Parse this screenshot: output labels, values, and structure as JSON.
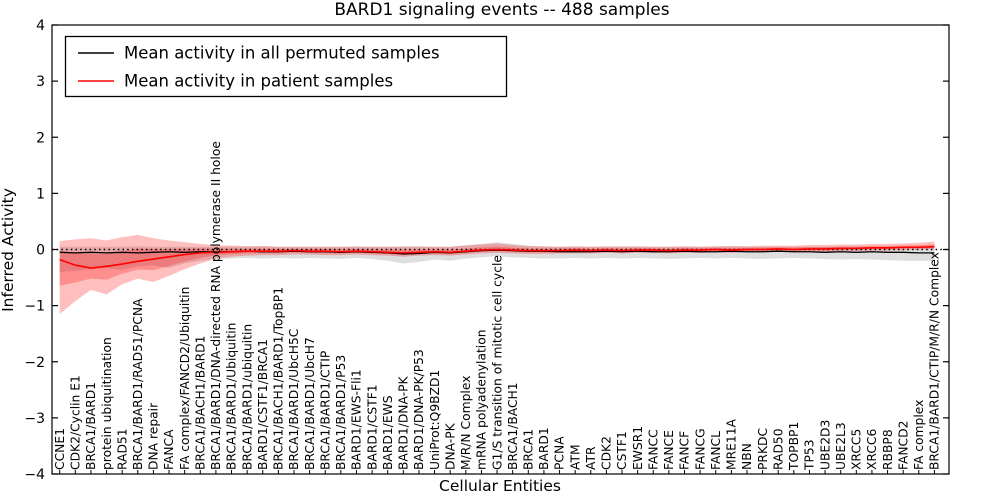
{
  "figure": {
    "title": "BARD1 signaling events -- 488 samples",
    "xlabel": "Cellular Entities",
    "ylabel": "Inferred Activity"
  },
  "legend": {
    "items": [
      {
        "label": "Mean activity in all permuted samples",
        "color": "#000000"
      },
      {
        "label": "Mean activity in patient samples",
        "color": "#ff0000"
      }
    ],
    "position": "upper left"
  },
  "chart_data": {
    "type": "line",
    "title": "BARD1 signaling events -- 488 samples",
    "xlabel": "Cellular Entities",
    "ylabel": "Inferred Activity",
    "ylim": [
      -4,
      4
    ],
    "yticks": [
      4,
      3,
      2,
      1,
      0,
      -1,
      -2,
      -3,
      -4
    ],
    "ytick_labels": [
      "4",
      "3",
      "2",
      "1",
      "0",
      "−1",
      "−2",
      "−3",
      "−4"
    ],
    "grid": false,
    "zero_line_style": "dotted",
    "legend_position": "upper left",
    "categories": [
      "CCNE1",
      "CDK2/Cyclin E1",
      "BRCA1/BARD1",
      "protein ubiquitination",
      "RAD51",
      "BRCA1/BARD1/RAD51/PCNA",
      "DNA repair",
      "FANCA",
      "FA complex/FANCD2/Ubiquitin",
      "BRCA1/BACH1/BARD1",
      "BRCA1/BARD1/DNA-directed RNA polymerase II holoe",
      "BRCA1/BARD1/Ubiquitin",
      "BRCA1/BARD1/ubiquitin",
      "BARD1/CSTF1/BRCA1",
      "BRCA1/BACH1/BARD1/TopBP1",
      "BRCA1/BARD1/UbcH5C",
      "BRCA1/BARD1/UbcH7",
      "BRCA1/BARD1/CTIP",
      "BRCA1/BARD1/P53",
      "BARD1/EWS-Fli1",
      "BARD1/CSTF1",
      "BARD1/EWS",
      "BARD1/DNA-PK",
      "BARD1/DNA-PK/P53",
      "UniProt:Q9BZD1",
      "DNA-PK",
      "M/R/N Complex",
      "mRNA polyadenylation",
      "G1/S transition of mitotic cell cycle",
      "BRCA1/BACH1",
      "BRCA1",
      "BARD1",
      "PCNA",
      "ATM",
      "ATR",
      "CDK2",
      "CSTF1",
      "EWSR1",
      "FANCC",
      "FANCE",
      "FANCF",
      "FANCG",
      "FANCL",
      "MRE11A",
      "NBN",
      "PRKDC",
      "RAD50",
      "TOPBP1",
      "TP53",
      "UBE2D3",
      "UBE2L3",
      "XRCC5",
      "XRCC6",
      "RBBP8",
      "FANCD2",
      "FA complex",
      "BRCA1/BARD1/CTIP/M/R/N Complex"
    ],
    "series": [
      {
        "name": "Mean activity in all permuted samples",
        "color": "#000000",
        "band_color": "#999999",
        "values": [
          -0.05,
          -0.06,
          -0.05,
          -0.06,
          -0.05,
          -0.06,
          -0.05,
          -0.04,
          -0.05,
          -0.04,
          -0.04,
          -0.04,
          -0.03,
          -0.04,
          -0.04,
          -0.03,
          -0.04,
          -0.04,
          -0.05,
          -0.04,
          -0.05,
          -0.06,
          -0.08,
          -0.07,
          -0.05,
          -0.06,
          -0.04,
          -0.02,
          -0.01,
          -0.02,
          -0.03,
          -0.03,
          -0.04,
          -0.04,
          -0.04,
          -0.03,
          -0.04,
          -0.03,
          -0.04,
          -0.04,
          -0.03,
          -0.04,
          -0.04,
          -0.03,
          -0.04,
          -0.04,
          -0.03,
          -0.04,
          -0.04,
          -0.05,
          -0.04,
          -0.05,
          -0.04,
          -0.05,
          -0.05,
          -0.06,
          -0.06
        ],
        "band_high": [
          0.05,
          0.05,
          0.05,
          0.05,
          0.05,
          0.06,
          0.05,
          0.05,
          0.05,
          0.05,
          0.05,
          0.05,
          0.05,
          0.06,
          0.05,
          0.05,
          0.05,
          0.05,
          0.05,
          0.06,
          0.05,
          0.05,
          0.06,
          0.06,
          0.05,
          0.05,
          0.08,
          0.1,
          0.13,
          0.1,
          0.07,
          0.05,
          0.05,
          0.05,
          0.05,
          0.05,
          0.06,
          0.05,
          0.05,
          0.05,
          0.05,
          0.05,
          0.05,
          0.06,
          0.05,
          0.05,
          0.05,
          0.05,
          0.05,
          0.05,
          0.05,
          0.05,
          0.05,
          0.05,
          0.05,
          0.05,
          0.05
        ],
        "band_low": [
          -0.4,
          -0.38,
          -0.35,
          -0.33,
          -0.36,
          -0.3,
          -0.28,
          -0.33,
          -0.25,
          -0.2,
          -0.17,
          -0.16,
          -0.15,
          -0.16,
          -0.15,
          -0.16,
          -0.15,
          -0.16,
          -0.17,
          -0.15,
          -0.17,
          -0.2,
          -0.25,
          -0.22,
          -0.18,
          -0.2,
          -0.16,
          -0.14,
          -0.12,
          -0.14,
          -0.15,
          -0.16,
          -0.16,
          -0.15,
          -0.16,
          -0.15,
          -0.16,
          -0.15,
          -0.16,
          -0.17,
          -0.16,
          -0.15,
          -0.16,
          -0.15,
          -0.16,
          -0.17,
          -0.16,
          -0.15,
          -0.16,
          -0.17,
          -0.18,
          -0.17,
          -0.18,
          -0.19,
          -0.2,
          -0.2,
          -0.21
        ]
      },
      {
        "name": "Mean activity in patient samples",
        "color": "#ff0000",
        "band_color": "#ff0000",
        "values": [
          -0.18,
          -0.28,
          -0.33,
          -0.3,
          -0.26,
          -0.21,
          -0.17,
          -0.13,
          -0.09,
          -0.06,
          -0.05,
          -0.04,
          -0.03,
          -0.03,
          -0.03,
          -0.02,
          -0.03,
          -0.03,
          -0.04,
          -0.03,
          -0.04,
          -0.05,
          -0.06,
          -0.05,
          -0.04,
          -0.05,
          -0.03,
          -0.01,
          0.0,
          -0.01,
          -0.02,
          -0.02,
          -0.02,
          -0.01,
          -0.02,
          -0.01,
          -0.02,
          -0.01,
          -0.01,
          -0.02,
          -0.01,
          -0.01,
          0.0,
          -0.01,
          0.0,
          0.0,
          0.01,
          0.0,
          0.01,
          0.01,
          0.02,
          0.02,
          0.03,
          0.03,
          0.04,
          0.04,
          0.05
        ],
        "band_high": [
          0.15,
          0.18,
          0.2,
          0.16,
          0.22,
          0.26,
          0.2,
          0.16,
          0.13,
          0.1,
          0.08,
          0.07,
          0.06,
          0.06,
          0.05,
          0.05,
          0.05,
          0.05,
          0.05,
          0.05,
          0.05,
          0.05,
          0.05,
          0.05,
          0.05,
          0.05,
          0.07,
          0.09,
          0.11,
          0.08,
          0.06,
          0.06,
          0.05,
          0.06,
          0.05,
          0.06,
          0.05,
          0.06,
          0.05,
          0.05,
          0.06,
          0.05,
          0.06,
          0.06,
          0.06,
          0.07,
          0.07,
          0.07,
          0.08,
          0.08,
          0.09,
          0.09,
          0.1,
          0.1,
          0.11,
          0.12,
          0.14
        ],
        "band_low": [
          -1.15,
          -0.92,
          -0.72,
          -0.8,
          -0.62,
          -0.52,
          -0.58,
          -0.47,
          -0.35,
          -0.25,
          -0.16,
          -0.13,
          -0.11,
          -0.1,
          -0.1,
          -0.09,
          -0.09,
          -0.1,
          -0.1,
          -0.09,
          -0.1,
          -0.11,
          -0.13,
          -0.11,
          -0.1,
          -0.11,
          -0.09,
          -0.07,
          -0.06,
          -0.07,
          -0.08,
          -0.08,
          -0.07,
          -0.07,
          -0.07,
          -0.06,
          -0.07,
          -0.06,
          -0.06,
          -0.07,
          -0.06,
          -0.06,
          -0.05,
          -0.06,
          -0.05,
          -0.05,
          -0.04,
          -0.05,
          -0.04,
          -0.04,
          -0.03,
          -0.03,
          -0.02,
          -0.02,
          -0.01,
          0.0,
          0.0
        ]
      }
    ]
  }
}
